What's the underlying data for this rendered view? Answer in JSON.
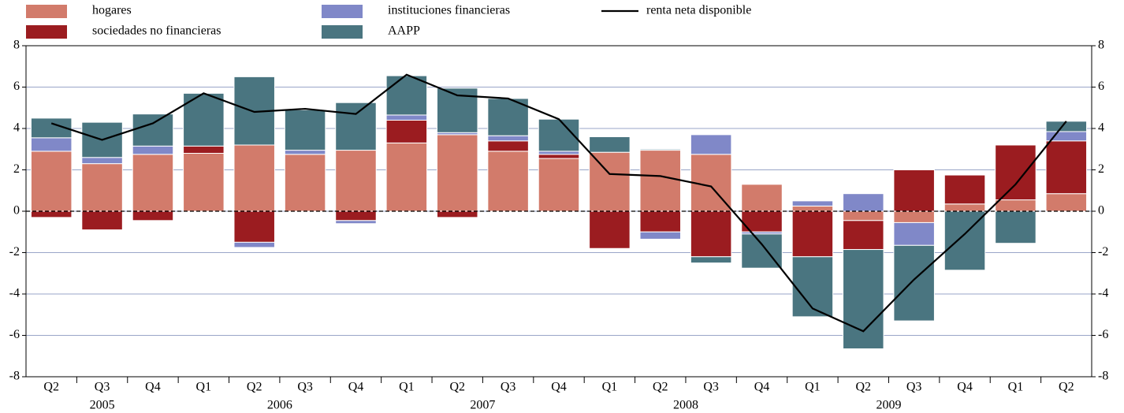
{
  "chart_data": {
    "type": "bar",
    "stacked": true,
    "category_groups": [
      {
        "group": "2005",
        "categories": [
          "Q2",
          "Q3",
          "Q4"
        ]
      },
      {
        "group": "2006",
        "categories": [
          "Q1",
          "Q2",
          "Q3",
          "Q4"
        ]
      },
      {
        "group": "2007",
        "categories": [
          "Q1",
          "Q2",
          "Q3",
          "Q4"
        ]
      },
      {
        "group": "2008",
        "categories": [
          "Q1",
          "Q2",
          "Q3",
          "Q4"
        ]
      },
      {
        "group": "2009",
        "categories": [
          "Q1",
          "Q2",
          "Q3",
          "Q4"
        ]
      },
      {
        "group": null,
        "categories": [
          "Q1",
          "Q2"
        ]
      }
    ],
    "series": [
      {
        "name": "hogares",
        "color": "#d27b6b",
        "values": [
          2.9,
          2.3,
          2.75,
          2.8,
          3.2,
          2.75,
          2.95,
          3.3,
          3.7,
          2.9,
          2.55,
          2.85,
          2.95,
          2.75,
          1.3,
          0.25,
          -0.45,
          -0.55,
          0.35,
          0.55,
          0.85
        ]
      },
      {
        "name": "sociedades no financieras",
        "color": "#9b1c20",
        "values": [
          -0.3,
          -0.9,
          -0.45,
          0.35,
          -1.5,
          0.0,
          -0.45,
          1.1,
          -0.3,
          0.5,
          0.2,
          -1.8,
          -1.0,
          -2.2,
          -1.0,
          -2.2,
          -1.4,
          2.0,
          1.4,
          2.65,
          2.55
        ]
      },
      {
        "name": "instituciones financieras",
        "color": "#8088c8",
        "values": [
          0.65,
          0.3,
          0.4,
          0.0,
          -0.25,
          0.2,
          -0.15,
          0.25,
          0.1,
          0.25,
          0.15,
          0.0,
          -0.35,
          0.95,
          -0.1,
          0.25,
          0.85,
          -1.1,
          0.0,
          0.0,
          0.45
        ]
      },
      {
        "name": "AAPP",
        "color": "#4a7580",
        "values": [
          0.95,
          1.7,
          1.55,
          2.55,
          3.3,
          1.95,
          2.3,
          1.9,
          2.15,
          1.8,
          1.55,
          0.75,
          0.05,
          -0.3,
          -1.65,
          -2.9,
          -4.8,
          -3.65,
          -2.85,
          -1.55,
          0.5
        ]
      }
    ],
    "line": {
      "name": "renta neta disponible",
      "color": "#000000",
      "values": [
        4.25,
        3.45,
        4.25,
        5.7,
        4.8,
        4.95,
        4.7,
        6.6,
        5.6,
        5.45,
        4.45,
        1.8,
        1.7,
        1.2,
        -1.6,
        -4.7,
        -5.8,
        -3.3,
        -1.1,
        1.3,
        4.35
      ]
    },
    "ylim": [
      -8,
      8
    ],
    "yticks": [
      -8,
      -6,
      -4,
      -2,
      0,
      2,
      4,
      6,
      8
    ],
    "grid": true,
    "right_axis_mirror": true
  }
}
